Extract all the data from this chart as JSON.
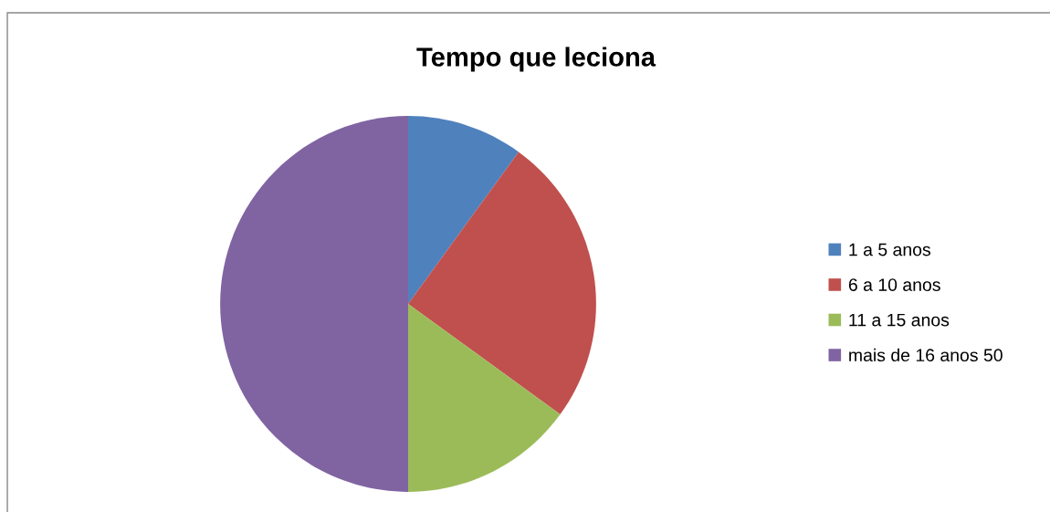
{
  "chart_data": {
    "type": "pie",
    "title": "Tempo que leciona",
    "categories": [
      "1 a 5 anos",
      "6 a 10 anos",
      "11 a 15 anos",
      "mais de 16 anos 50"
    ],
    "values": [
      10,
      25,
      15,
      50
    ],
    "colors": [
      "#4f81bd",
      "#c0504d",
      "#9bbb59",
      "#8064a2"
    ],
    "legend": "right"
  }
}
